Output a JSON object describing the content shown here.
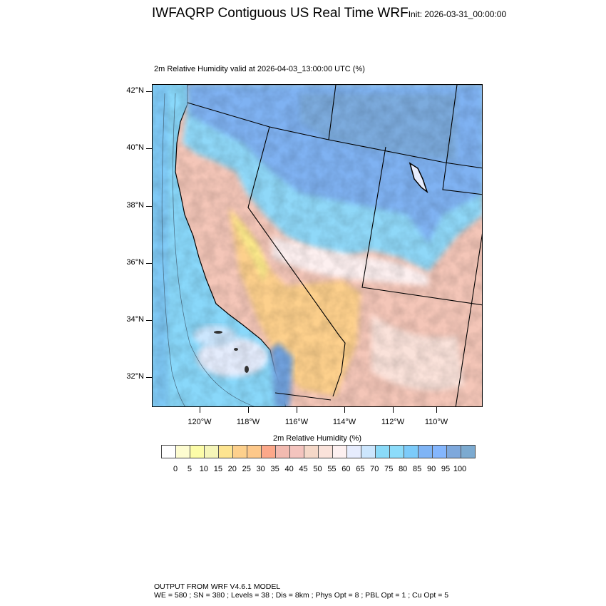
{
  "header": {
    "title": "IWFAQRP Contiguous US Real Time WRF",
    "init": "Init: 2026-03-31_00:00:00",
    "subtitle": "2m Relative Humidity valid at 2026-04-03_13:00:00 UTC   (%)"
  },
  "axes": {
    "lat_labels": [
      "42°N",
      "40°N",
      "38°N",
      "36°N",
      "34°N",
      "32°N"
    ],
    "lon_labels": [
      "120°W",
      "118°W",
      "116°W",
      "114°W",
      "112°W",
      "110°W"
    ]
  },
  "colorbar": {
    "title": "2m Relative Humidity  (%)",
    "labels": [
      "0",
      "5",
      "10",
      "15",
      "20",
      "25",
      "30",
      "35",
      "40",
      "45",
      "50",
      "55",
      "60",
      "65",
      "70",
      "75",
      "80",
      "85",
      "90",
      "95",
      "100"
    ],
    "colors": [
      "#ffffff",
      "#fdfcd0",
      "#fcfca8",
      "#f5f5b8",
      "#fde490",
      "#fdd08c",
      "#fdc88a",
      "#fca88a",
      "#f2bab0",
      "#f4c4be",
      "#f5d8c8",
      "#fae2da",
      "#fdf0f0",
      "#e6ecfd",
      "#cce6fd",
      "#8adaf8",
      "#8cdcfa",
      "#7ccbfa",
      "#7fb4f5",
      "#84b6fd",
      "#7ea8dc",
      "#7caad0"
    ]
  },
  "footer": {
    "line1": "OUTPUT FROM WRF V4.6.1 MODEL",
    "line2": "WE = 580 ; SN = 380 ; Levels = 38 ; Dis = 8km ; Phys Opt = 8 ; PBL Opt = 1 ; Cu Opt = 5"
  }
}
